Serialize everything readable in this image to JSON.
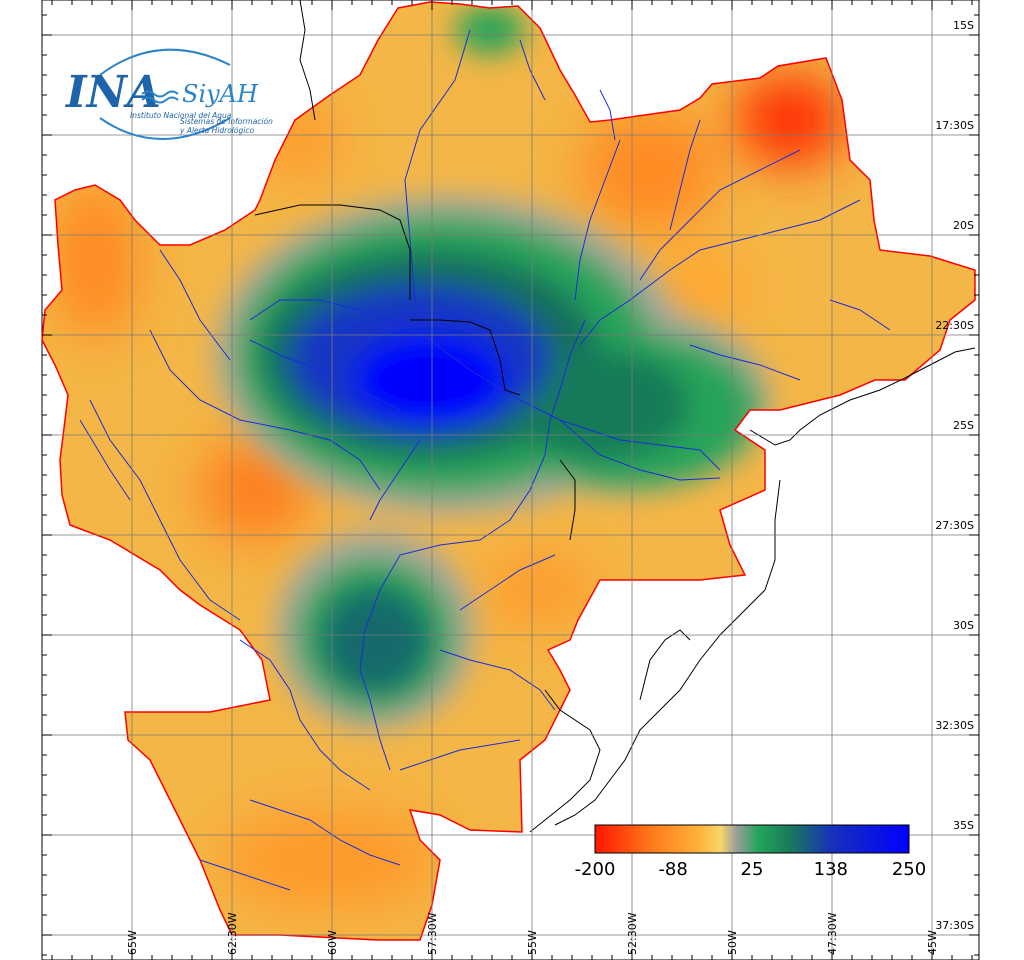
{
  "logo": {
    "primary": "INA",
    "secondary": "SiyAH",
    "org_name": "Instituto Nacional del Agua",
    "system_line1": "Sistemas de información",
    "system_line2": "y Alerta Hidrológico",
    "color": "#1f63a8"
  },
  "latitude_labels": [
    "15S",
    "17:30S",
    "20S",
    "22:30S",
    "25S",
    "27:30S",
    "30S",
    "32:30S",
    "35S",
    "37:30S"
  ],
  "longitude_labels": [
    "65W",
    "62:30W",
    "60W",
    "57:30W",
    "55W",
    "52:30W",
    "50W",
    "47:30W",
    "45W"
  ],
  "colorbar": {
    "ticks": [
      "-200",
      "-88",
      "25",
      "138",
      "250"
    ],
    "values": [
      -200,
      -88,
      25,
      138,
      250
    ],
    "colors": [
      "#ff1500",
      "#ff8a20",
      "#f6cd58",
      "#9a9a9a",
      "#21a05a",
      "#1d7d57",
      "#1130d2",
      "#0000ff"
    ]
  },
  "map_colors": {
    "region_base": "#f4b646",
    "region_border": "#ff0000",
    "rivers": "#1a2dd9",
    "borders": "#000000",
    "grid": "#7a7a7a"
  }
}
